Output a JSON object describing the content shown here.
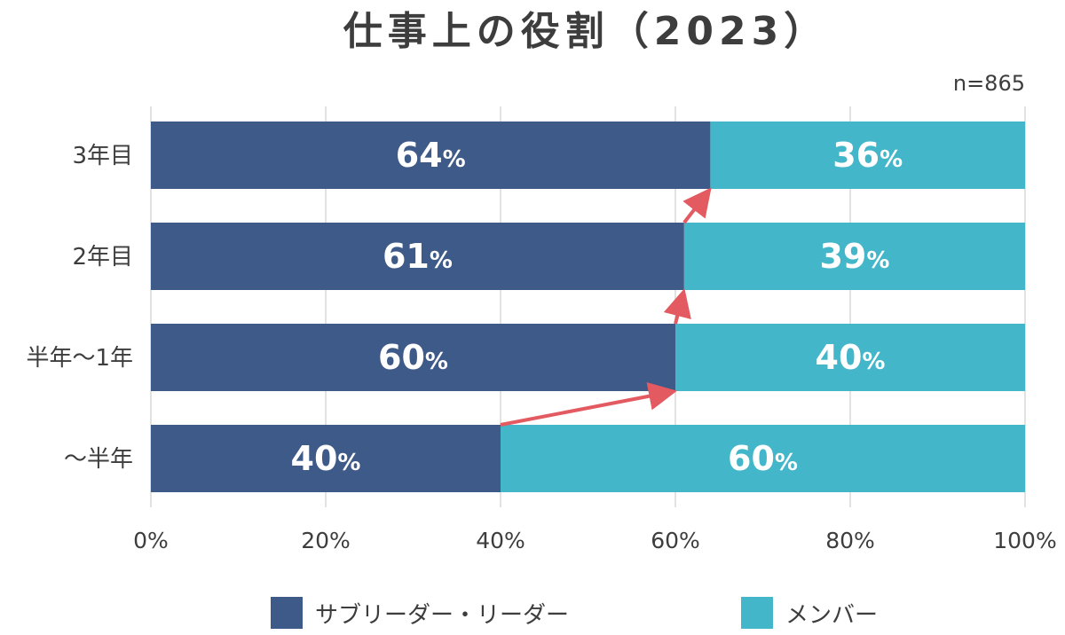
{
  "chart_data": {
    "type": "bar",
    "orientation": "horizontal",
    "stacked": true,
    "title": "仕事上の役割（2023）",
    "note": "n=865",
    "categories": [
      "3年目",
      "2年目",
      "半年～1年",
      "～半年"
    ],
    "series": [
      {
        "name": "サブリーダー・リーダー",
        "values": [
          64,
          61,
          60,
          40
        ],
        "color": "#3e5a88"
      },
      {
        "name": "メンバー",
        "values": [
          36,
          39,
          40,
          60
        ],
        "color": "#43b6c9"
      }
    ],
    "value_suffix": "%",
    "xlim": [
      0,
      100
    ],
    "x_ticks": [
      "0%",
      "20%",
      "40%",
      "60%",
      "80%",
      "100%"
    ],
    "grid": true,
    "legend_position": "bottom",
    "arrow_color": "#e35a61"
  }
}
